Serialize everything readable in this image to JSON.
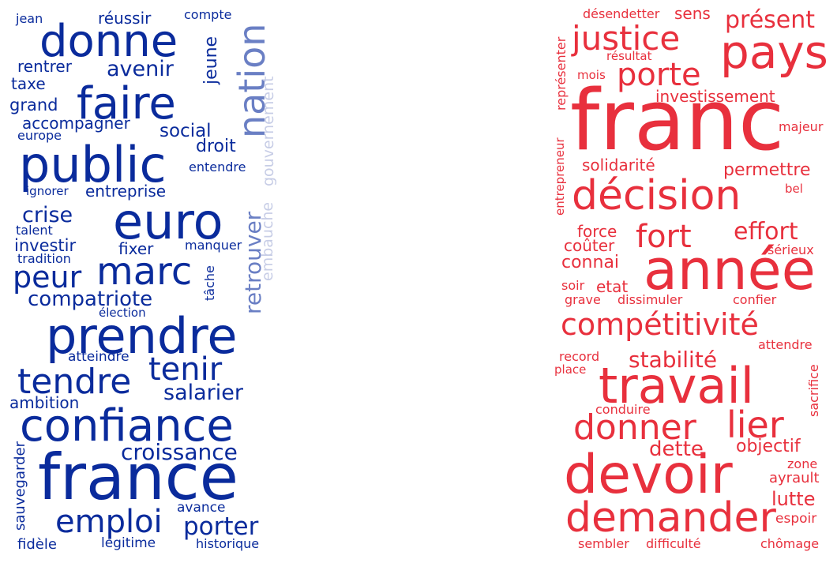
{
  "colors": {
    "blue": "#0a2b9c",
    "blue_mid": "#6a7fc4",
    "blue_light": "#c7cde6",
    "red": "#e8303d",
    "red_light": "#f08a91"
  },
  "left_cloud": {
    "words": {
      "jean": "jean",
      "reussir": "réussir",
      "compte": "compte",
      "donne": "donne",
      "jeune": "jeune",
      "rentrer": "rentrer",
      "avenir": "avenir",
      "taxe": "taxe",
      "faire": "faire",
      "nation": "nation",
      "gouvernement": "gouvernement",
      "grand": "grand",
      "accompagner": "accompagner",
      "social": "social",
      "europe": "europe",
      "droit": "droit",
      "public": "public",
      "entendre": "entendre",
      "ignorer": "ignorer",
      "entreprise": "entreprise",
      "crise": "crise",
      "euro": "euro",
      "retrouver": "retrouver",
      "embauche": "embauche",
      "talent": "talent",
      "investir": "investir",
      "fixer": "fixer",
      "manquer": "manquer",
      "tradition": "tradition",
      "peur": "peur",
      "marc": "marc",
      "tache": "tâche",
      "compatriote": "compatriote",
      "election": "élection",
      "prendre": "prendre",
      "tenir": "tenir",
      "atteindre": "atteindre",
      "tendre": "tendre",
      "salarier": "salarier",
      "ambition": "ambition",
      "confiance": "confiance",
      "croissance": "croissance",
      "sauvegarder": "sauvegarder",
      "france": "france",
      "avance": "avance",
      "emploi": "emploi",
      "porter": "porter",
      "fidele": "fidèle",
      "legitime": "légitime",
      "historique": "historique"
    }
  },
  "right_cloud": {
    "words": {
      "desendetter": "désendetter",
      "sens": "sens",
      "present": "présent",
      "justice": "justice",
      "pays": "pays",
      "resultat": "résultat",
      "representer": "représenter",
      "mois": "mois",
      "porte": "porte",
      "investissement": "investissement",
      "franc": "franc",
      "majeur": "majeur",
      "entrepreneur": "entrepreneur",
      "solidarite": "solidarité",
      "permettre": "permettre",
      "decision": "décision",
      "bel": "bel",
      "force": "force",
      "fort": "fort",
      "effort": "effort",
      "couter": "coûter",
      "connai": "connai",
      "annee": "année",
      "serieux": "sérieux",
      "soir": "soir",
      "etat": "etat",
      "grave": "grave",
      "dissimuler": "dissimuler",
      "confier": "confier",
      "competitivite": "compétitivité",
      "attendre": "attendre",
      "record": "record",
      "place": "place",
      "stabilite": "stabilité",
      "travail": "travail",
      "sacrifice": "sacrifice",
      "conduire": "conduire",
      "donner": "donner",
      "lier": "lier",
      "dette": "dette",
      "objectif": "objectif",
      "devoir": "devoir",
      "zone": "zone",
      "ayrault": "ayrault",
      "lutte": "lutte",
      "demander": "demander",
      "espoir": "espoir",
      "sembler": "sembler",
      "difficulte": "difficulté",
      "chomage": "chômage"
    }
  }
}
